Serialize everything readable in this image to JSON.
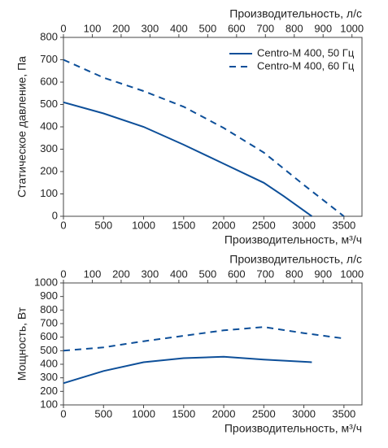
{
  "chart_data": [
    {
      "type": "line",
      "ylabel": "Статическое давление, Па",
      "xlabel": "Производительность, м³/ч",
      "x2label": "Производительность, л/с",
      "xlim": [
        0,
        3725
      ],
      "xticks": [
        0,
        500,
        1000,
        1500,
        2000,
        2500,
        3000,
        3500
      ],
      "x2lim": [
        0,
        1034.7
      ],
      "x2ticks": [
        0,
        100,
        200,
        300,
        400,
        500,
        600,
        700,
        800,
        900,
        1000
      ],
      "ylim": [
        0,
        800
      ],
      "yticks": [
        0,
        100,
        200,
        300,
        400,
        500,
        600,
        700,
        800
      ],
      "legend": "top-right",
      "series": [
        {
          "name": "Centro-M 400, 50 Гц",
          "color": "#0d4f99",
          "dashed": false,
          "x": [
            0,
            500,
            1000,
            1500,
            2000,
            2500,
            2750,
            3100
          ],
          "values": [
            510,
            460,
            400,
            320,
            235,
            150,
            90,
            0
          ]
        },
        {
          "name": "Centro-M 400, 60 Гц",
          "color": "#0d4f99",
          "dashed": true,
          "x": [
            0,
            500,
            1000,
            1500,
            2000,
            2500,
            3000,
            3500
          ],
          "values": [
            700,
            620,
            560,
            490,
            395,
            285,
            140,
            0
          ]
        }
      ]
    },
    {
      "type": "line",
      "ylabel": "Мощность, Вт",
      "xlabel": "Производительность, м³/ч",
      "x2label": "Производительность, л/с",
      "xlim": [
        0,
        3725
      ],
      "xticks": [
        0,
        500,
        1000,
        1500,
        2000,
        2500,
        3000,
        3500
      ],
      "x2lim": [
        0,
        1034.7
      ],
      "x2ticks": [
        0,
        100,
        200,
        300,
        400,
        500,
        600,
        700,
        800,
        900,
        1000
      ],
      "ylim": [
        100,
        1000
      ],
      "yticks": [
        100,
        200,
        300,
        400,
        500,
        600,
        700,
        800,
        900,
        1000
      ],
      "series": [
        {
          "color": "#0d4f99",
          "dashed": false,
          "x": [
            0,
            500,
            1000,
            1500,
            2000,
            2500,
            3100
          ],
          "values": [
            260,
            350,
            415,
            445,
            455,
            435,
            415
          ]
        },
        {
          "color": "#0d4f99",
          "dashed": true,
          "x": [
            0,
            500,
            1000,
            1500,
            2000,
            2500,
            3000,
            3500
          ],
          "values": [
            500,
            525,
            570,
            610,
            650,
            675,
            630,
            590
          ]
        }
      ]
    }
  ]
}
